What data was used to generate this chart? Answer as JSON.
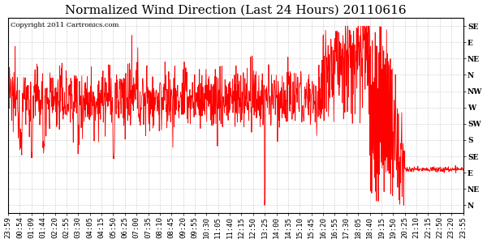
{
  "title": "Normalized Wind Direction (Last 24 Hours) 20110616",
  "copyright_text": "Copyright 2011 Cartronics.com",
  "line_color": "#FF0000",
  "background_color": "#FFFFFF",
  "plot_background": "#FFFFFF",
  "grid_color": "#BBBBBB",
  "ytick_labels": [
    "SE",
    "E",
    "NE",
    "N",
    "NW",
    "W",
    "SW",
    "S",
    "SE",
    "E",
    "NE",
    "N"
  ],
  "ytick_values": [
    11,
    10,
    9,
    8,
    7,
    6,
    5,
    4,
    3,
    2,
    1,
    0
  ],
  "ylim": [
    -0.5,
    11.5
  ],
  "xtick_labels": [
    "23:59",
    "00:54",
    "01:09",
    "01:44",
    "02:20",
    "02:55",
    "03:30",
    "04:05",
    "04:15",
    "05:50",
    "06:25",
    "07:00",
    "07:35",
    "08:10",
    "08:45",
    "09:20",
    "09:55",
    "10:30",
    "11:05",
    "11:40",
    "12:15",
    "12:50",
    "13:25",
    "14:00",
    "14:35",
    "15:10",
    "15:45",
    "16:20",
    "16:55",
    "17:30",
    "18:05",
    "18:40",
    "19:15",
    "19:50",
    "20:25",
    "21:10",
    "22:15",
    "22:50",
    "23:20",
    "23:55"
  ],
  "title_fontsize": 11,
  "tick_fontsize": 6.5,
  "copyright_fontsize": 6
}
